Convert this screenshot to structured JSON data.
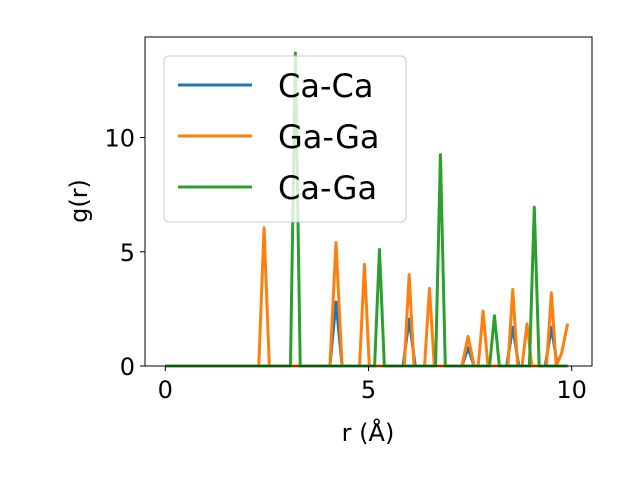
{
  "chart_data": {
    "type": "line",
    "xlabel": "r (Å)",
    "ylabel": "g(r)",
    "xlim": [
      -0.5,
      10.5
    ],
    "ylim": [
      0,
      14.4
    ],
    "xticks": [
      0,
      5,
      10
    ],
    "yticks": [
      0,
      5,
      10
    ],
    "grid": false,
    "legend_position": "top-left",
    "series": [
      {
        "name": "Ca-Ca",
        "color": "#1f77b4",
        "x": [
          0,
          4.05,
          4.2,
          4.35,
          5.85,
          6.0,
          6.15,
          7.3,
          7.45,
          7.6,
          8.4,
          8.55,
          8.7,
          9.35,
          9.5,
          9.65,
          9.9
        ],
        "y": [
          0,
          0,
          2.8,
          0,
          0,
          2.05,
          0,
          0,
          0.8,
          0,
          0,
          1.7,
          0,
          0,
          1.7,
          0,
          0
        ]
      },
      {
        "name": "Ga-Ga",
        "color": "#ff7f0e",
        "x": [
          0,
          2.3,
          2.43,
          2.56,
          4.05,
          4.2,
          4.35,
          4.78,
          4.9,
          5.02,
          5.88,
          6.0,
          6.12,
          6.38,
          6.5,
          6.62,
          7.3,
          7.45,
          7.6,
          7.7,
          7.82,
          7.94,
          8.43,
          8.55,
          8.67,
          8.78,
          8.9,
          9.02,
          9.38,
          9.5,
          9.62,
          9.75,
          9.9
        ],
        "y": [
          0,
          0,
          6.05,
          0,
          0,
          5.4,
          0,
          0,
          4.45,
          0,
          0,
          4.0,
          0,
          0,
          3.4,
          0,
          0,
          1.3,
          0,
          0,
          2.4,
          0,
          0,
          3.35,
          0,
          0,
          1.85,
          0,
          0,
          3.2,
          0,
          0.55,
          1.85
        ]
      },
      {
        "name": "Ca-Ga",
        "color": "#2ca02c",
        "x": [
          0,
          3.08,
          3.2,
          3.32,
          5.15,
          5.27,
          5.39,
          6.65,
          6.77,
          6.89,
          7.98,
          8.1,
          8.22,
          8.96,
          9.08,
          9.2,
          9.9
        ],
        "y": [
          0,
          0,
          13.7,
          0,
          0,
          5.1,
          0,
          0,
          9.25,
          0,
          0,
          2.2,
          0,
          0,
          6.95,
          0,
          0
        ]
      }
    ]
  }
}
